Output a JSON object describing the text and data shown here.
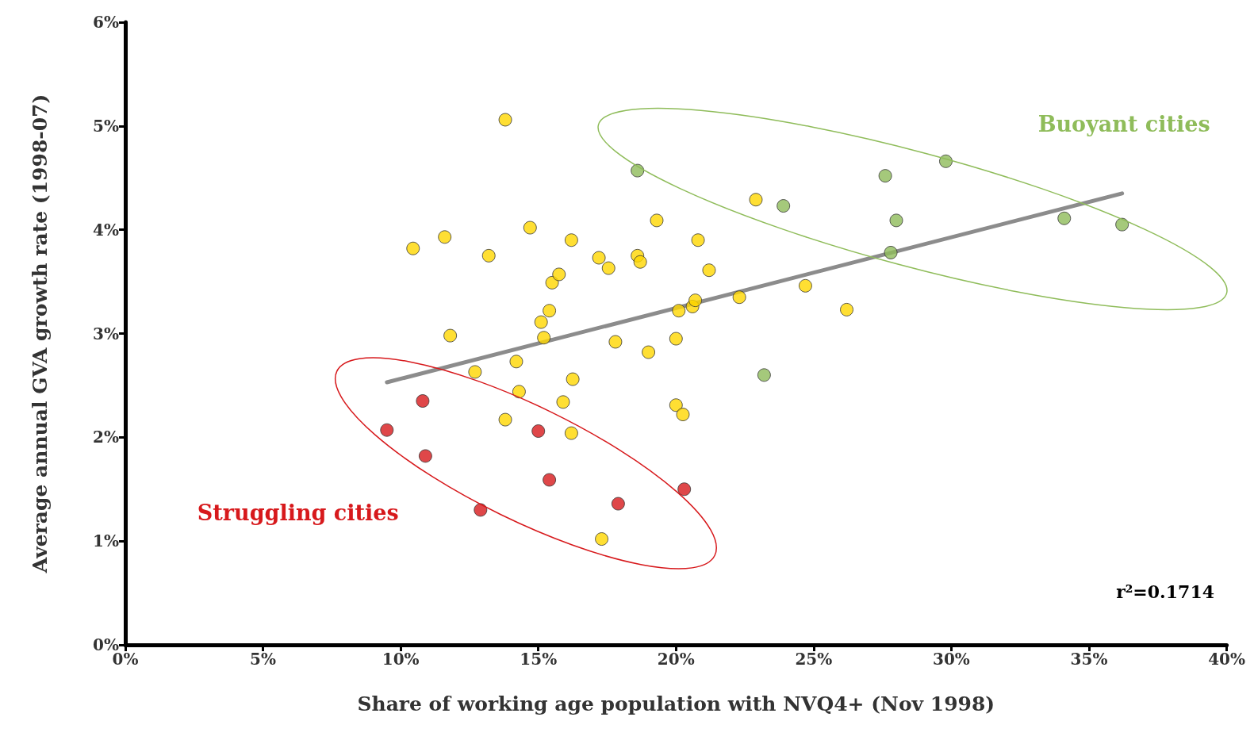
{
  "chart_data": {
    "type": "scatter",
    "xlabel": "Share of working age population with NVQ4+ (Nov 1998)",
    "ylabel": "Average annual GVA growth rate (1998-07)",
    "xlim": [
      0,
      40
    ],
    "ylim": [
      0,
      6
    ],
    "xticks": [
      {
        "value": 0,
        "label": "0%"
      },
      {
        "value": 5,
        "label": "5%"
      },
      {
        "value": 10,
        "label": "10%"
      },
      {
        "value": 15,
        "label": "15%"
      },
      {
        "value": 20,
        "label": "20%"
      },
      {
        "value": 25,
        "label": "25%"
      },
      {
        "value": 30,
        "label": "30%"
      },
      {
        "value": 35,
        "label": "35%"
      },
      {
        "value": 40,
        "label": "40%"
      }
    ],
    "yticks": [
      {
        "value": 0,
        "label": "0%"
      },
      {
        "value": 1,
        "label": "1%"
      },
      {
        "value": 2,
        "label": "2%"
      },
      {
        "value": 3,
        "label": "3%"
      },
      {
        "value": 4,
        "label": "4%"
      },
      {
        "value": 5,
        "label": "5%"
      },
      {
        "value": 6,
        "label": "6%"
      }
    ],
    "grid": false,
    "legend": false,
    "marker": "circle",
    "series": [
      {
        "color": "#ffd700",
        "x": [
          13.8,
          10.45,
          11.6,
          13.2,
          14.7,
          16.2,
          11.8,
          12.7,
          14.2,
          14.3,
          13.8,
          15.1,
          15.4,
          15.2,
          15.5,
          15.75,
          17.2,
          17.55,
          18.6,
          18.7,
          19.3,
          20.8,
          21.2,
          20.1,
          20.0,
          20.6,
          20.7,
          17.8,
          19.0,
          16.25,
          15.9,
          16.2,
          20.0,
          20.25,
          22.3,
          22.9,
          24.7,
          26.2,
          17.3
        ],
        "values": [
          5.06,
          3.82,
          3.93,
          3.75,
          4.02,
          3.9,
          2.98,
          2.63,
          2.73,
          2.44,
          2.17,
          3.11,
          3.22,
          2.96,
          3.49,
          3.57,
          3.73,
          3.63,
          3.75,
          3.69,
          4.09,
          3.9,
          3.61,
          3.22,
          2.95,
          3.26,
          3.32,
          2.92,
          2.82,
          2.56,
          2.34,
          2.04,
          2.31,
          2.22,
          3.35,
          4.29,
          3.46,
          3.23,
          1.02
        ]
      },
      {
        "name": "Buoyant cities",
        "color": "#8fbc5a",
        "x": [
          18.6,
          23.9,
          23.2,
          27.6,
          28.0,
          27.8,
          29.8,
          34.1,
          36.2
        ],
        "values": [
          4.57,
          4.23,
          2.6,
          4.52,
          4.09,
          3.78,
          4.66,
          4.11,
          4.05
        ]
      },
      {
        "name": "Struggling cities",
        "color": "#d7191c",
        "x": [
          9.5,
          10.8,
          10.9,
          12.9,
          15.0,
          15.4,
          17.9,
          20.3
        ],
        "values": [
          2.07,
          2.35,
          1.82,
          1.3,
          2.06,
          1.59,
          1.36,
          1.5
        ]
      },
      {
        "type": "line",
        "color": "#8c8c8c",
        "marker": "none",
        "x": [
          9.5,
          36.2
        ],
        "values": [
          2.53,
          4.35
        ]
      }
    ],
    "annotations": [
      "r²=0.1714"
    ]
  }
}
